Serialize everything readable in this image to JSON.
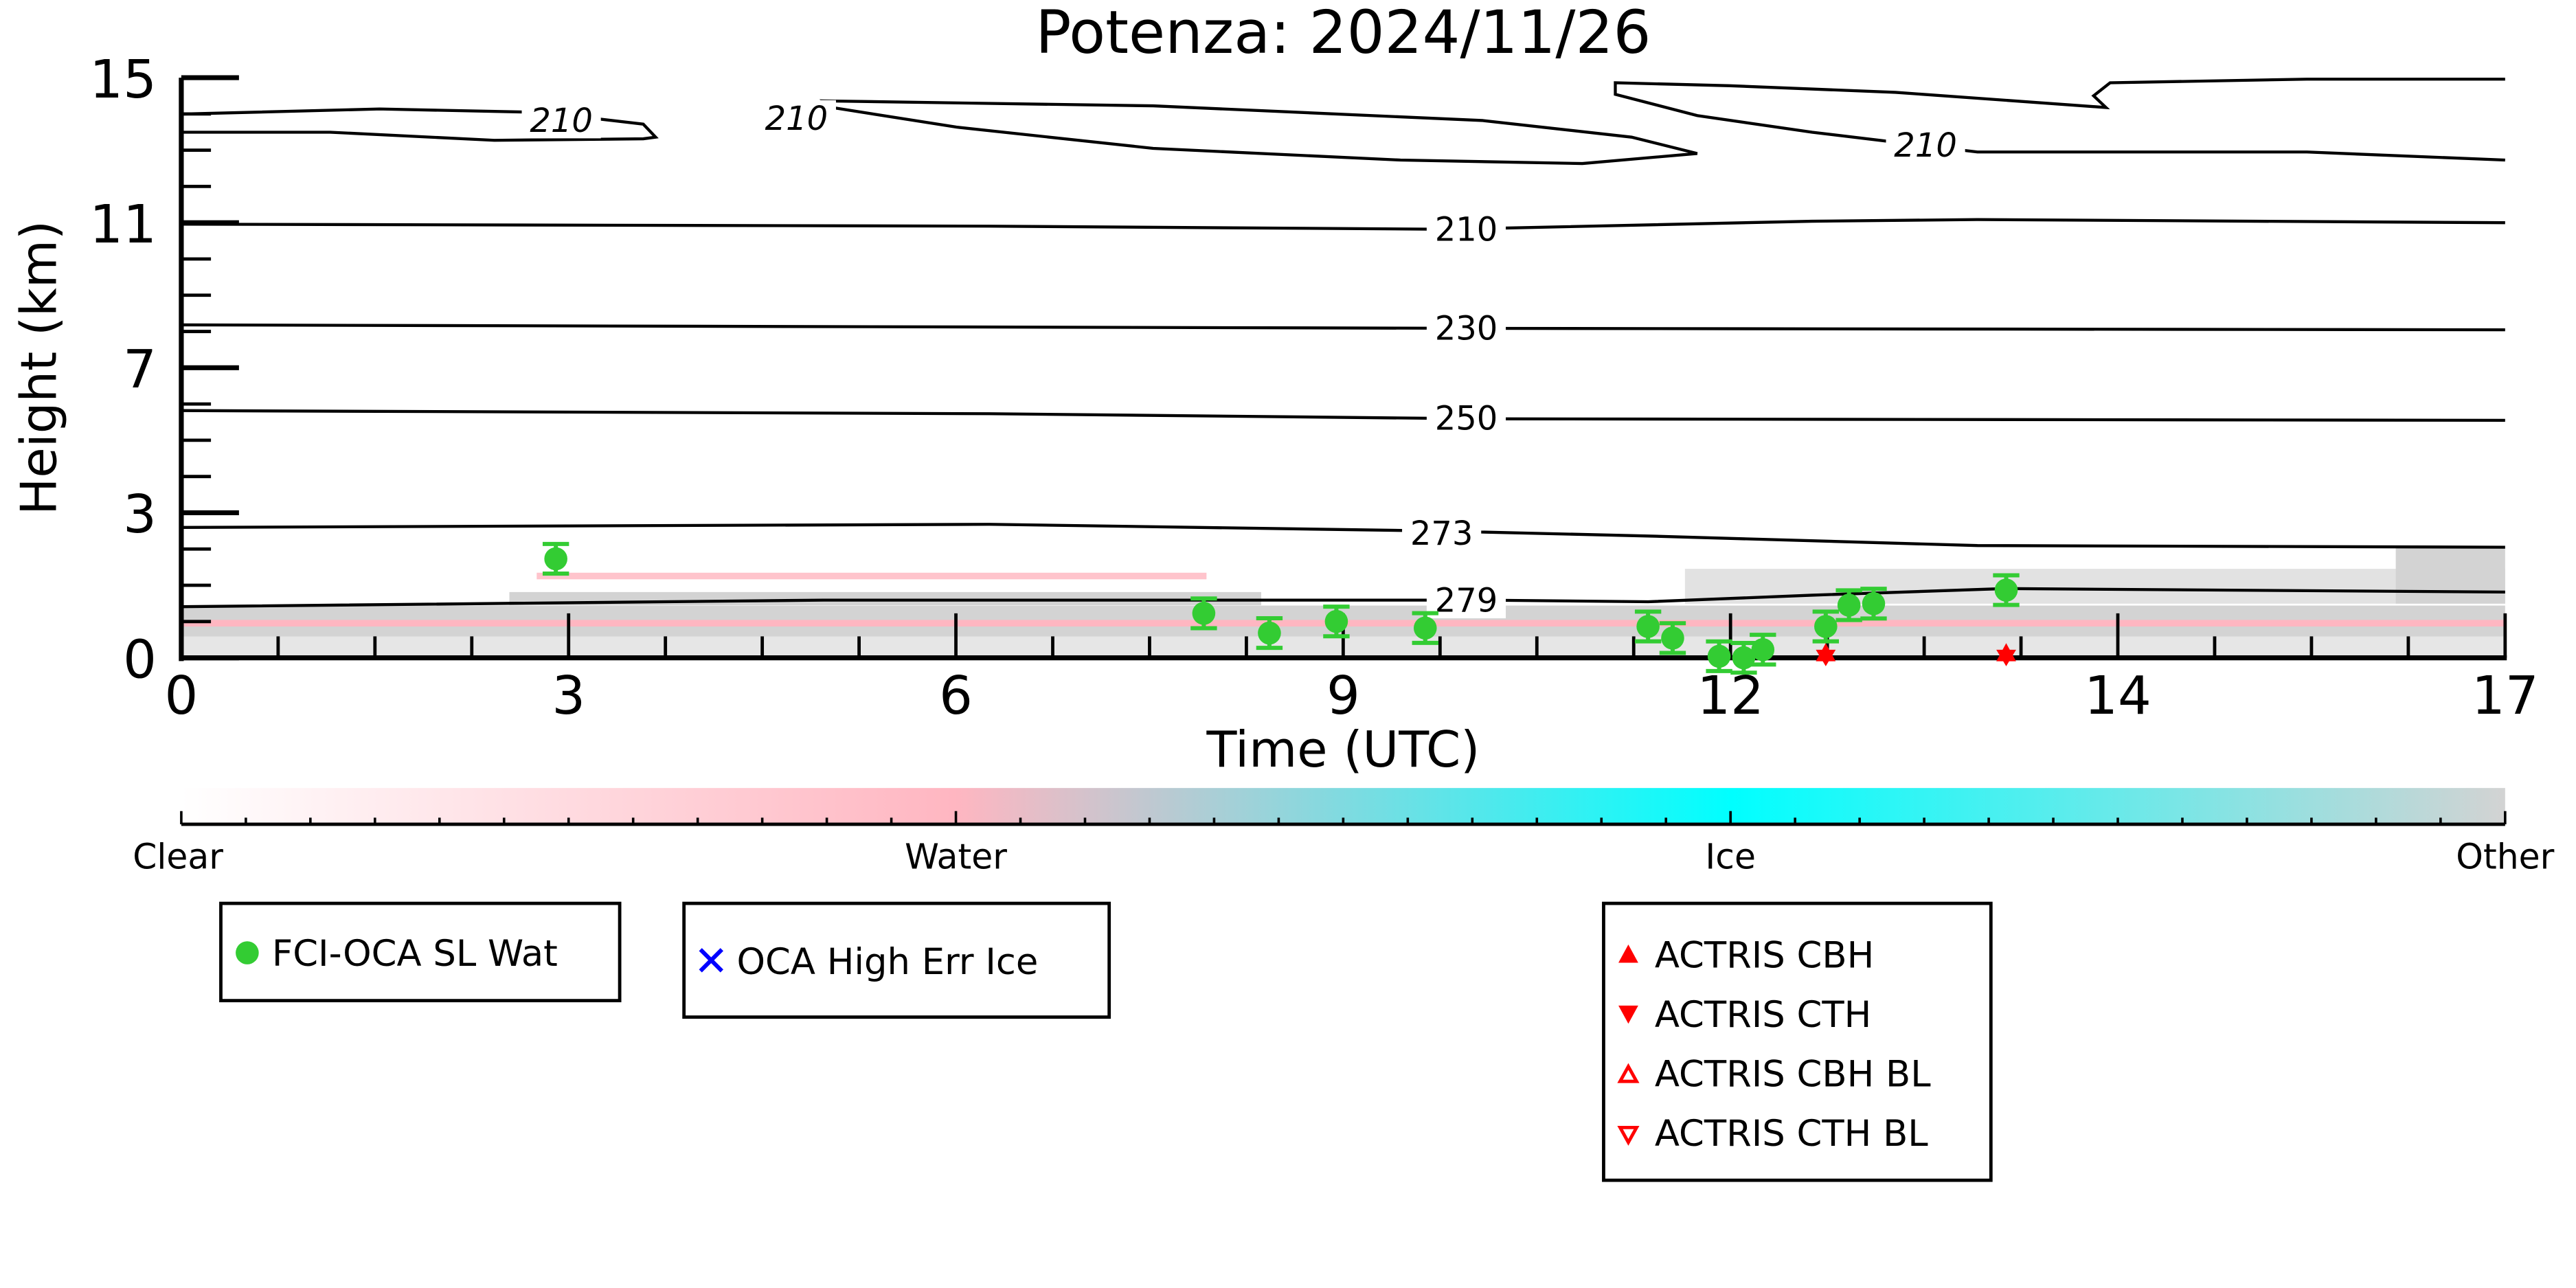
{
  "chart_data": {
    "type": "scatter",
    "title": "Potenza: 2024/11/26",
    "xlabel": "Time (UTC)",
    "ylabel": "Height (km)",
    "xlim": [
      0,
      17
    ],
    "ylim": [
      0,
      15
    ],
    "x_tick_labels": [
      "0",
      "3",
      "6",
      "9",
      "12",
      "14",
      "17"
    ],
    "y_tick_labels": [
      "0",
      "3",
      "7",
      "11",
      "15"
    ],
    "temperature_contours": [
      {
        "label": "279",
        "points": [
          [
            0,
            1.32
          ],
          [
            4.7,
            1.49
          ],
          [
            9.52,
            1.49
          ],
          [
            10.73,
            1.45
          ],
          [
            11.93,
            1.62
          ],
          [
            13.34,
            1.79
          ],
          [
            17,
            1.7
          ]
        ],
        "label_at": [
          9.4,
          1.49
        ]
      },
      {
        "label": "273",
        "points": [
          [
            0,
            3.37
          ],
          [
            5.91,
            3.45
          ],
          [
            9.16,
            3.28
          ],
          [
            10.73,
            3.15
          ],
          [
            13.14,
            2.9
          ],
          [
            17,
            2.86
          ]
        ],
        "label_at": [
          9.22,
          3.22
        ]
      },
      {
        "label": "250",
        "points": [
          [
            0,
            6.39
          ],
          [
            5.91,
            6.31
          ],
          [
            9.52,
            6.18
          ],
          [
            17,
            6.14
          ]
        ],
        "label_at": [
          9.4,
          6.2
        ]
      },
      {
        "label": "230",
        "points": [
          [
            0,
            8.61
          ],
          [
            9.52,
            8.52
          ],
          [
            17,
            8.48
          ]
        ],
        "label_at": [
          9.4,
          8.52
        ]
      },
      {
        "label": "210",
        "points": [
          [
            0,
            11.21
          ],
          [
            5.91,
            11.16
          ],
          [
            9.28,
            11.08
          ],
          [
            11.93,
            11.29
          ],
          [
            13.14,
            11.33
          ],
          [
            17,
            11.25
          ]
        ],
        "label_at": [
          9.4,
          11.08
        ]
      },
      {
        "label": "210",
        "closed": true,
        "points": [
          [
            0,
            14.06
          ],
          [
            1.45,
            14.19
          ],
          [
            2.65,
            14.1
          ],
          [
            3.38,
            13.8
          ],
          [
            3.47,
            13.46
          ],
          [
            3.38,
            13.42
          ],
          [
            2.29,
            13.38
          ],
          [
            1.09,
            13.59
          ],
          [
            0,
            13.59
          ]
        ],
        "label_at": [
          2.78,
          13.9
        ]
      },
      {
        "label": "210",
        "closed": true,
        "points": [
          [
            4.7,
            14.4
          ],
          [
            7.11,
            14.27
          ],
          [
            9.52,
            13.89
          ],
          [
            10.61,
            13.46
          ],
          [
            11.09,
            13.04
          ],
          [
            10.25,
            12.78
          ],
          [
            8.92,
            12.87
          ],
          [
            7.11,
            13.17
          ],
          [
            5.67,
            13.72
          ],
          [
            4.76,
            14.23
          ]
        ],
        "label_at": [
          4.5,
          13.95
        ]
      },
      {
        "label": "210",
        "points": [
          [
            17,
            14.96
          ],
          [
            15.55,
            14.96
          ],
          [
            14.11,
            14.87
          ],
          [
            13.99,
            14.53
          ],
          [
            14.08,
            14.23
          ],
          [
            12.54,
            14.62
          ],
          [
            11.33,
            14.79
          ],
          [
            10.49,
            14.87
          ],
          [
            10.49,
            14.57
          ],
          [
            11.09,
            14.02
          ],
          [
            11.93,
            13.59
          ],
          [
            13.14,
            13.08
          ],
          [
            15.55,
            13.08
          ],
          [
            17,
            12.87
          ]
        ],
        "label_at": [
          12.76,
          13.26
        ]
      }
    ],
    "series": [
      {
        "name": "FCI-OCA SL Wat",
        "color": "#33cc33",
        "marker": "circle",
        "points": [
          [
            2.74,
            2.56
          ],
          [
            7.48,
            1.15
          ],
          [
            7.96,
            0.64
          ],
          [
            8.45,
            0.94
          ],
          [
            9.1,
            0.77
          ],
          [
            10.73,
            0.81
          ],
          [
            10.91,
            0.51
          ],
          [
            11.25,
            0.04
          ],
          [
            11.43,
            0.0
          ],
          [
            11.57,
            0.21
          ],
          [
            12.03,
            0.81
          ],
          [
            12.2,
            1.36
          ],
          [
            12.38,
            1.4
          ],
          [
            13.35,
            1.75
          ]
        ]
      },
      {
        "name": "OCA High Err Ice",
        "color": "#0000ff",
        "marker": "x",
        "points": []
      },
      {
        "name": "ACTRIS CBH",
        "color": "#ff0000",
        "marker": "triangle-up",
        "points": [
          [
            12.03,
            0.08
          ],
          [
            13.35,
            0.08
          ]
        ]
      },
      {
        "name": "ACTRIS CTH",
        "color": "#ff0000",
        "marker": "triangle-down",
        "points": [
          [
            12.03,
            0.08
          ],
          [
            13.35,
            0.08
          ]
        ]
      },
      {
        "name": "ACTRIS CBH BL",
        "color": "#ff0000",
        "marker": "triangle-up-open",
        "points": []
      },
      {
        "name": "ACTRIS CTH BL",
        "color": "#ff0000",
        "marker": "triangle-down-open",
        "points": []
      }
    ],
    "colorbar": {
      "labels": [
        "Clear",
        "Water",
        "Ice",
        "Other"
      ],
      "colors": [
        "#ffffff",
        "#ffb6c1",
        "#00ffff",
        "#d3d3d3"
      ]
    },
    "legends": [
      [
        "FCI-OCA SL Wat"
      ],
      [
        "OCA High Err Ice"
      ],
      [
        "ACTRIS CBH",
        "ACTRIS CTH",
        "ACTRIS CBH BL",
        "ACTRIS CTH BL"
      ]
    ]
  }
}
